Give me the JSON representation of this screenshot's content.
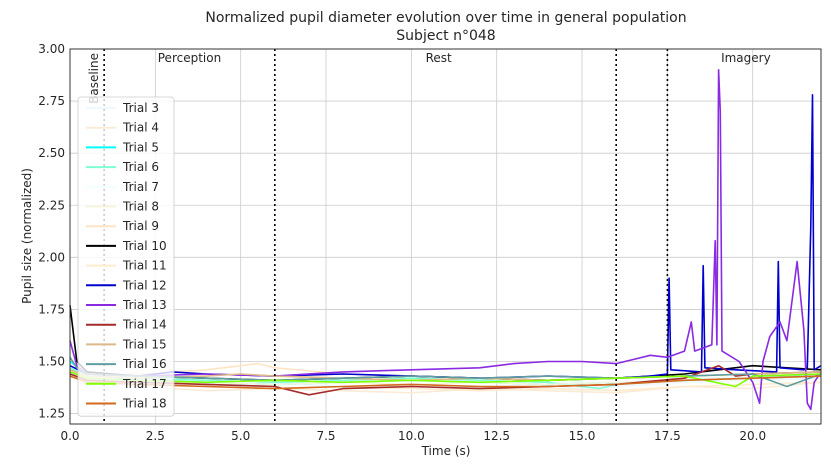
{
  "chart_data": {
    "type": "line",
    "title": "Normalized pupil diameter evolution over time in general population",
    "subtitle": "Subject n°048",
    "xlabel": "Time (s)",
    "ylabel": "Pupil size (normalized)",
    "xlim": [
      0,
      22
    ],
    "ylim": [
      1.2,
      3.0
    ],
    "xticks": [
      0.0,
      2.5,
      5.0,
      7.5,
      10.0,
      12.5,
      15.0,
      17.5,
      20.0
    ],
    "xtick_labels": [
      "0.0",
      "2.5",
      "5.0",
      "7.5",
      "10.0",
      "12.5",
      "15.0",
      "17.5",
      "20.0"
    ],
    "yticks": [
      1.25,
      1.5,
      1.75,
      2.0,
      2.25,
      2.5,
      2.75,
      3.0
    ],
    "ytick_labels": [
      "1.25",
      "1.50",
      "1.75",
      "2.00",
      "2.25",
      "2.50",
      "2.75",
      "3.00"
    ],
    "grid": true,
    "legend_position": "left",
    "phase_boundaries": [
      1.0,
      6.0,
      16.0,
      17.5
    ],
    "phases": [
      {
        "label": "Baseline",
        "x": 0.7,
        "vertical": true
      },
      {
        "label": "Perception",
        "x": 3.5,
        "vertical": false
      },
      {
        "label": "Rest",
        "x": 10.8,
        "vertical": false
      },
      {
        "label": "Imagery",
        "x": 19.8,
        "vertical": false
      }
    ],
    "series": [
      {
        "name": "Trial 3",
        "color": "#f0f8ff",
        "points": [
          [
            0,
            1.46
          ],
          [
            0.5,
            1.42
          ],
          [
            2,
            1.41
          ],
          [
            4,
            1.39
          ],
          [
            6,
            1.4
          ],
          [
            8,
            1.38
          ],
          [
            10,
            1.37
          ],
          [
            12,
            1.38
          ],
          [
            14,
            1.37
          ],
          [
            16,
            1.38
          ],
          [
            18,
            1.4
          ],
          [
            20,
            1.41
          ],
          [
            22,
            1.42
          ]
        ]
      },
      {
        "name": "Trial 4",
        "color": "#faebd7",
        "points": [
          [
            0,
            1.45
          ],
          [
            0.5,
            1.42
          ],
          [
            2,
            1.38
          ],
          [
            4,
            1.36
          ],
          [
            6,
            1.37
          ],
          [
            8,
            1.36
          ],
          [
            10,
            1.35
          ],
          [
            12,
            1.37
          ],
          [
            14,
            1.36
          ],
          [
            16,
            1.35
          ],
          [
            18,
            1.38
          ],
          [
            20,
            1.37
          ],
          [
            22,
            1.4
          ]
        ]
      },
      {
        "name": "Trial 5",
        "color": "#00ffff",
        "points": [
          [
            0,
            1.5
          ],
          [
            0.5,
            1.44
          ],
          [
            2,
            1.41
          ],
          [
            4,
            1.4
          ],
          [
            6,
            1.39
          ],
          [
            8,
            1.4
          ],
          [
            10,
            1.41
          ],
          [
            12,
            1.4
          ],
          [
            14,
            1.39
          ],
          [
            16,
            1.4
          ],
          [
            18,
            1.41
          ],
          [
            20,
            1.42
          ],
          [
            22,
            1.43
          ]
        ]
      },
      {
        "name": "Trial 6",
        "color": "#7fffd4",
        "points": [
          [
            0,
            1.47
          ],
          [
            0.5,
            1.43
          ],
          [
            2,
            1.42
          ],
          [
            4,
            1.41
          ],
          [
            6,
            1.4
          ],
          [
            8,
            1.41
          ],
          [
            10,
            1.42
          ],
          [
            12,
            1.41
          ],
          [
            14,
            1.4
          ],
          [
            15.5,
            1.37
          ],
          [
            16,
            1.39
          ],
          [
            18,
            1.41
          ],
          [
            20,
            1.42
          ],
          [
            22,
            1.44
          ]
        ]
      },
      {
        "name": "Trial 7",
        "color": "#f0ffff",
        "points": [
          [
            0,
            1.44
          ],
          [
            0.5,
            1.42
          ],
          [
            2,
            1.4
          ],
          [
            4,
            1.39
          ],
          [
            6,
            1.41
          ],
          [
            8,
            1.4
          ],
          [
            10,
            1.41
          ],
          [
            12,
            1.4
          ],
          [
            14,
            1.41
          ],
          [
            16,
            1.4
          ],
          [
            18,
            1.42
          ],
          [
            20,
            1.43
          ],
          [
            22,
            1.44
          ]
        ]
      },
      {
        "name": "Trial 8",
        "color": "#f5f5dc",
        "points": [
          [
            0,
            1.43
          ],
          [
            0.5,
            1.41
          ],
          [
            2,
            1.4
          ],
          [
            4,
            1.4
          ],
          [
            6,
            1.39
          ],
          [
            8,
            1.4
          ],
          [
            10,
            1.39
          ],
          [
            12,
            1.4
          ],
          [
            14,
            1.39
          ],
          [
            16,
            1.4
          ],
          [
            18,
            1.41
          ],
          [
            20,
            1.42
          ],
          [
            22,
            1.43
          ]
        ]
      },
      {
        "name": "Trial 9",
        "color": "#ffe4c4",
        "points": [
          [
            0,
            1.45
          ],
          [
            0.5,
            1.43
          ],
          [
            2,
            1.44
          ],
          [
            4,
            1.46
          ],
          [
            5.5,
            1.49
          ],
          [
            6,
            1.47
          ],
          [
            8,
            1.44
          ],
          [
            10,
            1.43
          ],
          [
            12,
            1.42
          ],
          [
            14,
            1.41
          ],
          [
            16,
            1.42
          ],
          [
            18,
            1.43
          ],
          [
            20,
            1.44
          ],
          [
            22,
            1.45
          ]
        ]
      },
      {
        "name": "Trial 10",
        "color": "#000000",
        "points": [
          [
            0,
            1.77
          ],
          [
            0.2,
            1.5
          ],
          [
            0.5,
            1.45
          ],
          [
            2,
            1.43
          ],
          [
            4,
            1.42
          ],
          [
            6,
            1.41
          ],
          [
            8,
            1.42
          ],
          [
            10,
            1.43
          ],
          [
            12,
            1.42
          ],
          [
            14,
            1.41
          ],
          [
            16,
            1.42
          ],
          [
            18,
            1.44
          ],
          [
            19,
            1.46
          ],
          [
            20,
            1.48
          ],
          [
            21,
            1.47
          ],
          [
            22,
            1.46
          ]
        ]
      },
      {
        "name": "Trial 11",
        "color": "#ffebcd",
        "points": [
          [
            0,
            1.44
          ],
          [
            0.5,
            1.41
          ],
          [
            2,
            1.39
          ],
          [
            4,
            1.38
          ],
          [
            6,
            1.37
          ],
          [
            8,
            1.38
          ],
          [
            10,
            1.37
          ],
          [
            12,
            1.36
          ],
          [
            14,
            1.37
          ],
          [
            16,
            1.36
          ],
          [
            18,
            1.38
          ],
          [
            20,
            1.39
          ],
          [
            22,
            1.4
          ]
        ]
      },
      {
        "name": "Trial 12",
        "color": "#0000cd",
        "points": [
          [
            0,
            1.48
          ],
          [
            0.5,
            1.44
          ],
          [
            2,
            1.43
          ],
          [
            3,
            1.45
          ],
          [
            4,
            1.44
          ],
          [
            6,
            1.43
          ],
          [
            8,
            1.44
          ],
          [
            10,
            1.43
          ],
          [
            12,
            1.42
          ],
          [
            14,
            1.43
          ],
          [
            16,
            1.42
          ],
          [
            17,
            1.43
          ],
          [
            17.5,
            1.44
          ],
          [
            17.55,
            1.9
          ],
          [
            17.6,
            1.46
          ],
          [
            18.5,
            1.45
          ],
          [
            18.55,
            1.96
          ],
          [
            18.6,
            1.47
          ],
          [
            19.5,
            1.46
          ],
          [
            20.7,
            1.45
          ],
          [
            20.75,
            1.98
          ],
          [
            20.8,
            1.47
          ],
          [
            21.5,
            1.46
          ],
          [
            21.6,
            1.47
          ],
          [
            21.7,
            2.15
          ],
          [
            21.75,
            2.78
          ],
          [
            21.8,
            1.46
          ],
          [
            22,
            1.48
          ]
        ]
      },
      {
        "name": "Trial 13",
        "color": "#8a2be2",
        "points": [
          [
            0,
            1.6
          ],
          [
            0.2,
            1.48
          ],
          [
            0.5,
            1.44
          ],
          [
            2,
            1.43
          ],
          [
            4,
            1.44
          ],
          [
            6,
            1.43
          ],
          [
            8,
            1.45
          ],
          [
            10,
            1.46
          ],
          [
            12,
            1.47
          ],
          [
            13,
            1.49
          ],
          [
            14,
            1.5
          ],
          [
            15,
            1.5
          ],
          [
            16,
            1.49
          ],
          [
            17,
            1.53
          ],
          [
            17.5,
            1.52
          ],
          [
            18,
            1.55
          ],
          [
            18.2,
            1.69
          ],
          [
            18.3,
            1.55
          ],
          [
            18.8,
            1.58
          ],
          [
            18.9,
            2.08
          ],
          [
            18.95,
            1.58
          ],
          [
            19.0,
            2.9
          ],
          [
            19.05,
            2.7
          ],
          [
            19.1,
            1.55
          ],
          [
            19.6,
            1.5
          ],
          [
            20.0,
            1.4
          ],
          [
            20.2,
            1.3
          ],
          [
            20.3,
            1.5
          ],
          [
            20.5,
            1.62
          ],
          [
            20.8,
            1.69
          ],
          [
            21,
            1.6
          ],
          [
            21.3,
            1.98
          ],
          [
            21.5,
            1.65
          ],
          [
            21.6,
            1.3
          ],
          [
            21.7,
            1.27
          ],
          [
            21.8,
            1.4
          ],
          [
            22,
            1.45
          ]
        ]
      },
      {
        "name": "Trial 14",
        "color": "#a52a2a",
        "points": [
          [
            0,
            1.44
          ],
          [
            0.5,
            1.41
          ],
          [
            2,
            1.4
          ],
          [
            4,
            1.39
          ],
          [
            6,
            1.38
          ],
          [
            7,
            1.34
          ],
          [
            8,
            1.37
          ],
          [
            10,
            1.38
          ],
          [
            12,
            1.37
          ],
          [
            14,
            1.38
          ],
          [
            16,
            1.39
          ],
          [
            18,
            1.42
          ],
          [
            19,
            1.48
          ],
          [
            19.5,
            1.43
          ],
          [
            20,
            1.44
          ],
          [
            22,
            1.45
          ]
        ]
      },
      {
        "name": "Trial 15",
        "color": "#deb887",
        "points": [
          [
            0,
            1.46
          ],
          [
            0.5,
            1.43
          ],
          [
            2,
            1.42
          ],
          [
            4,
            1.43
          ],
          [
            5,
            1.44
          ],
          [
            6,
            1.43
          ],
          [
            8,
            1.42
          ],
          [
            10,
            1.41
          ],
          [
            12,
            1.42
          ],
          [
            14,
            1.41
          ],
          [
            16,
            1.42
          ],
          [
            18,
            1.43
          ],
          [
            20,
            1.44
          ],
          [
            22,
            1.45
          ]
        ]
      },
      {
        "name": "Trial 16",
        "color": "#5f9ea0",
        "points": [
          [
            0,
            1.52
          ],
          [
            0.2,
            1.47
          ],
          [
            0.5,
            1.44
          ],
          [
            2,
            1.43
          ],
          [
            4,
            1.42
          ],
          [
            6,
            1.41
          ],
          [
            8,
            1.42
          ],
          [
            10,
            1.43
          ],
          [
            12,
            1.42
          ],
          [
            14,
            1.43
          ],
          [
            16,
            1.42
          ],
          [
            18,
            1.43
          ],
          [
            20,
            1.44
          ],
          [
            21,
            1.38
          ],
          [
            22,
            1.44
          ]
        ]
      },
      {
        "name": "Trial 17",
        "color": "#7fff00",
        "points": [
          [
            0,
            1.45
          ],
          [
            0.5,
            1.42
          ],
          [
            2,
            1.41
          ],
          [
            4,
            1.4
          ],
          [
            6,
            1.41
          ],
          [
            8,
            1.4
          ],
          [
            10,
            1.41
          ],
          [
            12,
            1.4
          ],
          [
            14,
            1.41
          ],
          [
            16,
            1.42
          ],
          [
            18,
            1.43
          ],
          [
            19.5,
            1.38
          ],
          [
            20,
            1.43
          ],
          [
            22,
            1.44
          ]
        ]
      },
      {
        "name": "Trial 18",
        "color": "#d2691e",
        "points": [
          [
            0,
            1.43
          ],
          [
            0.5,
            1.4
          ],
          [
            2,
            1.39
          ],
          [
            4,
            1.38
          ],
          [
            6,
            1.37
          ],
          [
            8,
            1.38
          ],
          [
            10,
            1.39
          ],
          [
            12,
            1.38
          ],
          [
            14,
            1.38
          ],
          [
            16,
            1.39
          ],
          [
            18,
            1.41
          ],
          [
            20,
            1.42
          ],
          [
            22,
            1.43
          ]
        ]
      }
    ]
  }
}
